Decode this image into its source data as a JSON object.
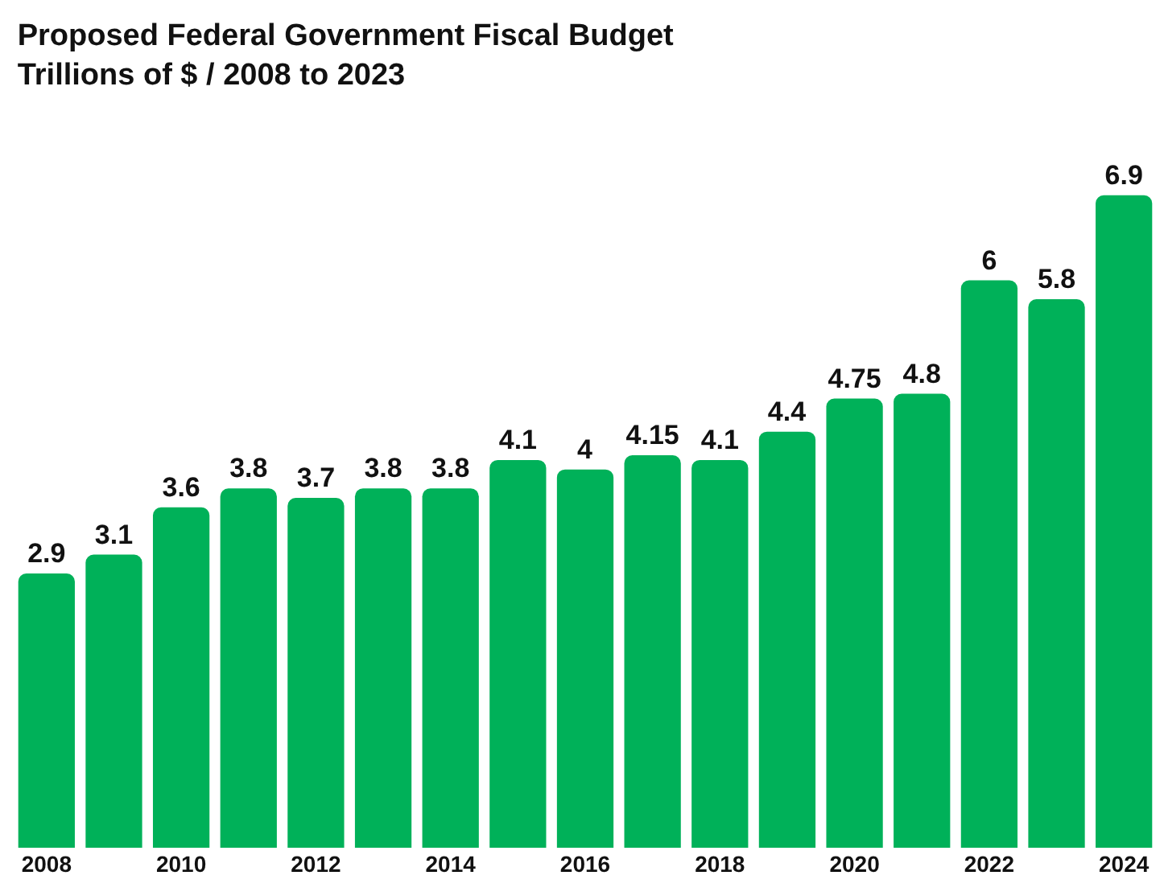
{
  "chart_data": {
    "type": "bar",
    "title": "Proposed Federal Government Fiscal Budget",
    "subtitle": "Trillions of $ / 2008 to 2023",
    "categories": [
      "2008",
      null,
      "2010",
      null,
      "2012",
      null,
      "2014",
      null,
      "2016",
      null,
      "2018",
      null,
      "2020",
      null,
      "2022",
      null,
      "2024"
    ],
    "values": [
      2.9,
      3.1,
      3.6,
      3.8,
      3.7,
      3.8,
      3.8,
      4.1,
      4,
      4.15,
      4.1,
      4.4,
      4.75,
      4.8,
      6,
      5.8,
      6.9
    ],
    "color": "#00b159",
    "data_labels": true,
    "grid": false,
    "legend": false
  }
}
